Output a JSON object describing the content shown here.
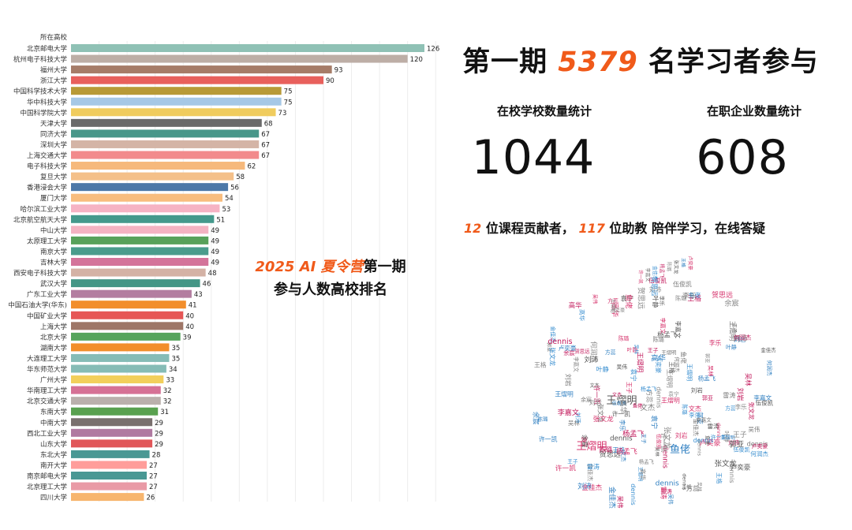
{
  "headline": {
    "prefix": "第一期",
    "count": "5379",
    "suffix": "名学习者参与"
  },
  "stats": {
    "schools_label": "在校学校数量统计",
    "schools_value": "1044",
    "companies_label": "在职企业数量统计",
    "companies_value": "608"
  },
  "contributors": {
    "courses_count": "12",
    "courses_text": "位课程贡献者，",
    "ta_count": "117",
    "ta_text": "位助教 陪伴学习，在线答疑"
  },
  "overlay": {
    "line1_highlight": "2025 AI 夏令营",
    "line1_rest": "第一期",
    "line2": "参与人数高校排名"
  },
  "chart_data": {
    "type": "bar",
    "orientation": "horizontal",
    "header": "所在高校",
    "categories": [
      "北京邮电大学",
      "杭州电子科技大学",
      "福州大学",
      "浙江大学",
      "中国科学技术大学",
      "华中科技大学",
      "中国科学院大学",
      "天津大学",
      "同济大学",
      "深圳大学",
      "上海交通大学",
      "电子科技大学",
      "复旦大学",
      "香港浸会大学",
      "厦门大学",
      "哈尔滨工业大学",
      "北京航空航天大学",
      "中山大学",
      "太原理工大学",
      "南京大学",
      "吉林大学",
      "西安电子科技大学",
      "武汉大学",
      "广东工业大学",
      "中国石油大学(华东)",
      "中国矿业大学",
      "上海大学",
      "北京大学",
      "湖南大学",
      "大连理工大学",
      "华东师范大学",
      "广州大学",
      "华南理工大学",
      "北京交通大学",
      "东南大学",
      "中南大学",
      "西北工业大学",
      "山东大学",
      "东北大学",
      "南开大学",
      "南京邮电大学",
      "北京理工大学",
      "四川大学"
    ],
    "values": [
      126,
      120,
      93,
      90,
      75,
      75,
      73,
      68,
      67,
      67,
      67,
      62,
      58,
      56,
      54,
      53,
      51,
      49,
      49,
      49,
      49,
      48,
      46,
      43,
      41,
      40,
      40,
      39,
      35,
      35,
      34,
      33,
      32,
      32,
      31,
      29,
      29,
      29,
      28,
      27,
      27,
      27,
      26
    ],
    "colors": [
      "#8fc1b5",
      "#bdaea6",
      "#a67c68",
      "#e8605c",
      "#b89a37",
      "#a6c8e6",
      "#f0cc5e",
      "#6a6a6a",
      "#48978a",
      "#d4b4a6",
      "#f28a8c",
      "#f6b97c",
      "#f4c089",
      "#4c78a8",
      "#f8bd7e",
      "#f6b3c4",
      "#44998c",
      "#f4b3c2",
      "#58a15a",
      "#4a9c8c",
      "#d4749a",
      "#d4b2a5",
      "#449686",
      "#b37da0",
      "#f28e2b",
      "#e65656",
      "#9e7667",
      "#56a45c",
      "#f28e2b",
      "#86bcb6",
      "#86bcb6",
      "#f2cf5b",
      "#d67195",
      "#bab0ac",
      "#59a14f",
      "#79706e",
      "#b07aa1",
      "#e15759",
      "#499894",
      "#ff9d9a",
      "#499894",
      "#e99aa6",
      "#f7b56e"
    ],
    "xlim": [
      0,
      140
    ],
    "grid": true
  },
  "word_cloud": {
    "words": [
      "王熠明",
      "鱼佬",
      "王熠明",
      "dennis",
      "dennis",
      "许一凯",
      "李嘉文",
      "金佳杰",
      "杨孟飞",
      "陈璐",
      "张文龙",
      "王格",
      "卢奕豪",
      "刘岩",
      "李乐",
      "伍俊凯",
      "高华",
      "吴林",
      "刘沛",
      "王子",
      "余宸",
      "叶静",
      "文杰",
      "方蕊",
      "雷涛",
      "何润杰",
      "贺思远",
      "郭亚",
      "袁宁",
      "吴伟"
    ]
  }
}
